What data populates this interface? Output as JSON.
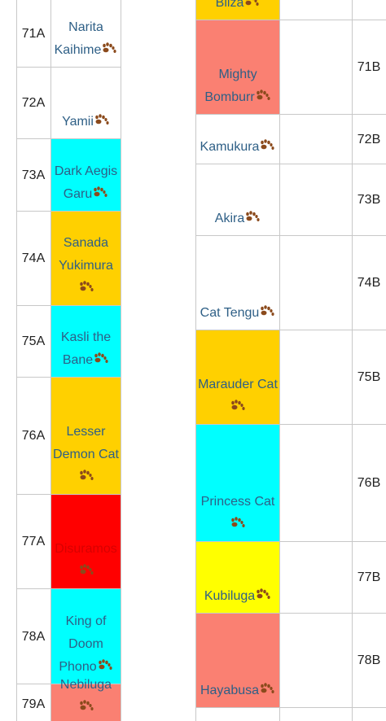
{
  "table_a": {
    "rows": [
      {
        "label": "71A",
        "name": "Narita Kaihime",
        "color": "#ffffff"
      },
      {
        "label": "72A",
        "name": "Yamii",
        "color": "#ffffff"
      },
      {
        "label": "73A",
        "name": "Dark Aegis Garu",
        "color": "#00ffff"
      },
      {
        "label": "74A",
        "name": "Sanada Yukimura",
        "color": "#ffd000"
      },
      {
        "label": "75A",
        "name": "Kasli the Bane",
        "color": "#00ffff"
      },
      {
        "label": "76A",
        "name": "Lesser Demon Cat",
        "color": "#ffd000"
      },
      {
        "label": "77A",
        "name": "Disuramos",
        "color": "#ff0000",
        "text_color": "#d80000"
      },
      {
        "label": "78A",
        "name": "King of Doom Phono",
        "color": "#00ffff"
      },
      {
        "label": "79A",
        "name": "Nebiluga",
        "color": "#fa8072"
      }
    ]
  },
  "table_b": {
    "rows": [
      {
        "name": "Bliza",
        "color": "#ffd000"
      },
      {
        "label": "71B",
        "name": "Mighty Bomburr",
        "color": "#fa8072"
      },
      {
        "label": "72B",
        "name": "Kamukura",
        "color": "#ffffff"
      },
      {
        "label": "73B",
        "name": "Akira",
        "color": "#ffffff"
      },
      {
        "label": "74B",
        "name": "Cat Tengu",
        "color": "#ffffff"
      },
      {
        "label": "75B",
        "name": "Marauder Cat",
        "color": "#ffd000"
      },
      {
        "label": "76B",
        "name": "Princess Cat",
        "color": "#00ffff"
      },
      {
        "label": "77B",
        "name": "Kubiluga",
        "color": "#ffff00"
      },
      {
        "label": "78B",
        "name": "Hayabusa",
        "color": "#fa8072"
      }
    ]
  }
}
